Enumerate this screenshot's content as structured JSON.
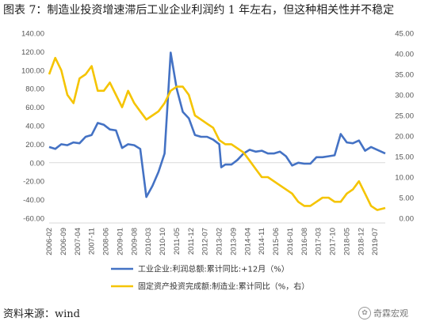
{
  "title": "图表 7：制造业投资增速滞后工业企业利润约 1 年左右，但这种相关性并不稳定",
  "source": "资料来源：wind",
  "watermark": "奇霖宏观",
  "chart_data": {
    "type": "line",
    "grid": false,
    "legend_position": "bottom",
    "left_axis": {
      "ylim": [
        -60,
        140
      ],
      "ticks": [
        "140.00",
        "120.00",
        "100.00",
        "80.00",
        "60.00",
        "40.00",
        "20.00",
        "0.00",
        "-20.00",
        "-40.00",
        "-60.00"
      ]
    },
    "right_axis": {
      "ylim": [
        0,
        45
      ],
      "ticks": [
        "45.00",
        "40.00",
        "35.00",
        "30.00",
        "25.00",
        "20.00",
        "15.00",
        "10.00",
        "5.00",
        "0.00"
      ]
    },
    "x_range": [
      "2006-02",
      "2019-12"
    ],
    "x_ticks": [
      "2006-02",
      "2006-09",
      "2007-04",
      "2007-11",
      "2008-06",
      "2009-01",
      "2009-08",
      "2010-03",
      "2010-10",
      "2011-05",
      "2011-12",
      "2012-07",
      "2013-02",
      "2013-09",
      "2014-04",
      "2014-11",
      "2015-06",
      "2016-01",
      "2016-08",
      "2017-03",
      "2017-10",
      "2018-05",
      "2018-12",
      "2019-07"
    ],
    "series": [
      {
        "name": "工业企业:利润总额:累计同比:+12月（%）",
        "axis": "left",
        "color": "#4472C4",
        "points": [
          [
            "2006-02",
            17
          ],
          [
            "2006-05",
            15
          ],
          [
            "2006-08",
            20
          ],
          [
            "2006-11",
            19
          ],
          [
            "2007-02",
            22
          ],
          [
            "2007-05",
            21
          ],
          [
            "2007-08",
            28
          ],
          [
            "2007-11",
            30
          ],
          [
            "2008-02",
            43
          ],
          [
            "2008-05",
            41
          ],
          [
            "2008-08",
            36
          ],
          [
            "2008-11",
            35
          ],
          [
            "2009-02",
            16
          ],
          [
            "2009-05",
            20
          ],
          [
            "2009-08",
            19
          ],
          [
            "2009-11",
            15
          ],
          [
            "2010-02",
            -37
          ],
          [
            "2010-05",
            -25
          ],
          [
            "2010-08",
            -10
          ],
          [
            "2010-11",
            10
          ],
          [
            "2011-02",
            119
          ],
          [
            "2011-05",
            80
          ],
          [
            "2011-08",
            55
          ],
          [
            "2011-11",
            48
          ],
          [
            "2012-02",
            30
          ],
          [
            "2012-05",
            28
          ],
          [
            "2012-08",
            28
          ],
          [
            "2012-11",
            25
          ],
          [
            "2013-02",
            20
          ],
          [
            "2013-03",
            -5
          ],
          [
            "2013-05",
            -2
          ],
          [
            "2013-08",
            -2
          ],
          [
            "2013-11",
            3
          ],
          [
            "2014-02",
            10
          ],
          [
            "2014-05",
            14
          ],
          [
            "2014-08",
            12
          ],
          [
            "2014-11",
            13
          ],
          [
            "2015-02",
            10
          ],
          [
            "2015-05",
            10
          ],
          [
            "2015-08",
            12
          ],
          [
            "2015-11",
            7
          ],
          [
            "2016-02",
            -3
          ],
          [
            "2016-05",
            0
          ],
          [
            "2016-08",
            -1
          ],
          [
            "2016-11",
            -1
          ],
          [
            "2017-02",
            6
          ],
          [
            "2017-05",
            6
          ],
          [
            "2017-08",
            7
          ],
          [
            "2017-11",
            8
          ],
          [
            "2018-02",
            31
          ],
          [
            "2018-05",
            22
          ],
          [
            "2018-08",
            21
          ],
          [
            "2018-11",
            24
          ],
          [
            "2019-02",
            13
          ],
          [
            "2019-05",
            17
          ],
          [
            "2019-08",
            14
          ],
          [
            "2019-12",
            10
          ]
        ]
      },
      {
        "name": "固定资产投资完成额:制造业:累计同比（%，右）",
        "axis": "right",
        "color": "#F5C400",
        "points": [
          [
            "2006-02",
            35
          ],
          [
            "2006-05",
            39
          ],
          [
            "2006-08",
            36
          ],
          [
            "2006-11",
            30
          ],
          [
            "2007-02",
            28
          ],
          [
            "2007-05",
            34
          ],
          [
            "2007-08",
            35
          ],
          [
            "2007-11",
            37
          ],
          [
            "2008-02",
            31
          ],
          [
            "2008-05",
            31
          ],
          [
            "2008-08",
            33
          ],
          [
            "2008-11",
            30
          ],
          [
            "2009-02",
            27
          ],
          [
            "2009-05",
            31
          ],
          [
            "2009-08",
            28
          ],
          [
            "2009-11",
            26
          ],
          [
            "2010-02",
            24
          ],
          [
            "2010-05",
            25
          ],
          [
            "2010-08",
            26
          ],
          [
            "2010-11",
            28
          ],
          [
            "2011-02",
            31
          ],
          [
            "2011-05",
            32
          ],
          [
            "2011-08",
            32
          ],
          [
            "2011-11",
            30
          ],
          [
            "2012-02",
            25
          ],
          [
            "2012-05",
            24
          ],
          [
            "2012-08",
            23
          ],
          [
            "2012-11",
            22
          ],
          [
            "2013-02",
            19
          ],
          [
            "2013-05",
            18
          ],
          [
            "2013-08",
            18
          ],
          [
            "2013-11",
            17
          ],
          [
            "2014-02",
            16
          ],
          [
            "2014-05",
            14
          ],
          [
            "2014-08",
            12
          ],
          [
            "2014-11",
            10
          ],
          [
            "2015-02",
            10
          ],
          [
            "2015-05",
            9
          ],
          [
            "2015-08",
            8
          ],
          [
            "2015-11",
            7
          ],
          [
            "2016-02",
            6
          ],
          [
            "2016-05",
            4
          ],
          [
            "2016-08",
            3
          ],
          [
            "2016-11",
            3
          ],
          [
            "2017-02",
            4
          ],
          [
            "2017-05",
            5
          ],
          [
            "2017-08",
            5
          ],
          [
            "2017-11",
            4
          ],
          [
            "2018-02",
            4
          ],
          [
            "2018-05",
            6
          ],
          [
            "2018-08",
            7
          ],
          [
            "2018-11",
            9
          ],
          [
            "2019-02",
            6
          ],
          [
            "2019-05",
            3
          ],
          [
            "2019-08",
            2
          ],
          [
            "2019-12",
            2.5
          ]
        ]
      }
    ]
  }
}
